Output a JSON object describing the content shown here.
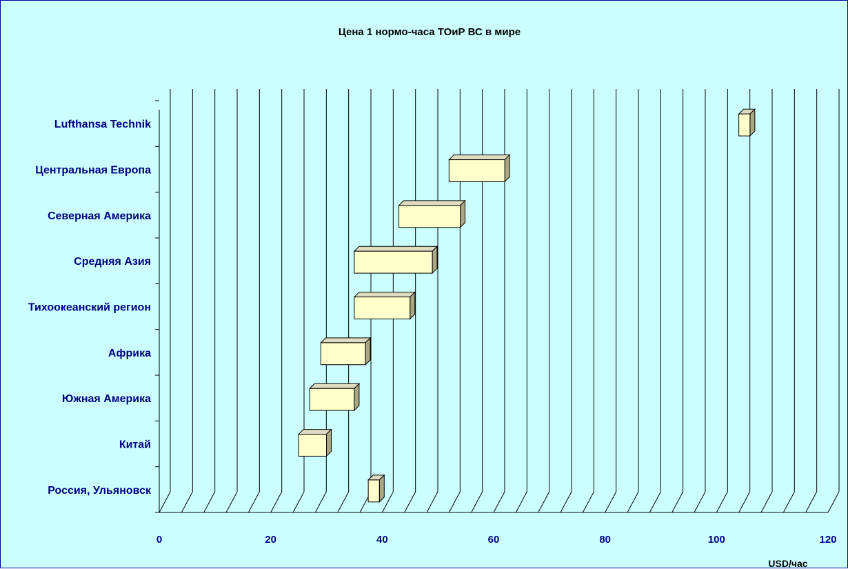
{
  "chart_data": {
    "type": "bar",
    "subtype": "floating-range-horizontal-3d",
    "title": "Цена 1 нормо-часа ТОиР ВС в мире",
    "xlabel": "USD/час",
    "ylabel": "",
    "xlim": [
      0,
      120
    ],
    "x_ticks": [
      "0",
      "20",
      "40",
      "60",
      "80",
      "100",
      "120"
    ],
    "grid": true,
    "legend": "none",
    "categories": [
      "Lufthansa Technik",
      "Центральная Европа",
      "Северная Америка",
      "Средняя Азия",
      "Тихоокеанский регион",
      "Африка",
      "Южная Америка",
      "Китай",
      "Россия, Ульяновск"
    ],
    "ranges": [
      [
        104,
        106
      ],
      [
        52,
        62
      ],
      [
        43,
        54
      ],
      [
        35,
        49
      ],
      [
        35,
        45
      ],
      [
        29,
        37
      ],
      [
        27,
        35
      ],
      [
        25,
        30
      ],
      [
        37.5,
        39.5
      ]
    ],
    "colors": {
      "background": "#ccffff",
      "bar_front": "#ffffcc",
      "bar_top": "#dedcc0",
      "bar_side": "#aba783",
      "label": "#000080",
      "grid": "#000000"
    }
  }
}
